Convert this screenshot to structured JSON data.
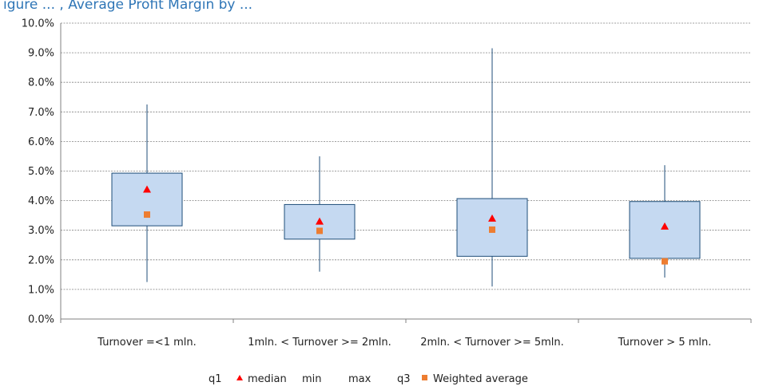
{
  "chart_data": {
    "type": "box",
    "header_fragment": "igure ... , Average Profit Margin by ...",
    "categories": [
      "Turnover =<1 mln.",
      "1mln. < Turnover >= 2mln.",
      "2mln. < Turnover >= 5mln.",
      "Turnover > 5 mln."
    ],
    "series": [
      {
        "name": "q1",
        "values": [
          3.15,
          2.7,
          2.12,
          2.05
        ]
      },
      {
        "name": "median",
        "values": [
          4.38,
          3.3,
          3.4,
          3.13
        ]
      },
      {
        "name": "min",
        "values": [
          1.25,
          1.6,
          1.1,
          1.4
        ]
      },
      {
        "name": "max",
        "values": [
          7.25,
          5.5,
          9.15,
          5.2
        ]
      },
      {
        "name": "q3",
        "values": [
          4.93,
          3.87,
          4.07,
          3.97
        ]
      },
      {
        "name": "Weighted average",
        "values": [
          3.53,
          2.98,
          3.02,
          1.95
        ]
      }
    ],
    "ylim": [
      0,
      10
    ],
    "y_ticks": [
      "0.0%",
      "1.0%",
      "2.0%",
      "3.0%",
      "4.0%",
      "5.0%",
      "6.0%",
      "7.0%",
      "8.0%",
      "9.0%",
      "10.0%"
    ],
    "grid": true,
    "legend_position": "bottom",
    "legend": [
      {
        "label": "q1",
        "marker": "none"
      },
      {
        "label": "median",
        "marker": "triangle",
        "color": "#ff0000"
      },
      {
        "label": "min",
        "marker": "none"
      },
      {
        "label": "max",
        "marker": "none"
      },
      {
        "label": "q3",
        "marker": "none"
      },
      {
        "label": "Weighted average",
        "marker": "square",
        "color": "#ed7d31"
      }
    ],
    "colors": {
      "box_fill": "#c5d9f1",
      "box_stroke": "#1f4e79",
      "whisker": "#1f4e79",
      "median": "#ff0000",
      "weighted_average": "#ed7d31",
      "grid": "#808080",
      "axis": "#808080",
      "header": "#2e75b6"
    }
  }
}
